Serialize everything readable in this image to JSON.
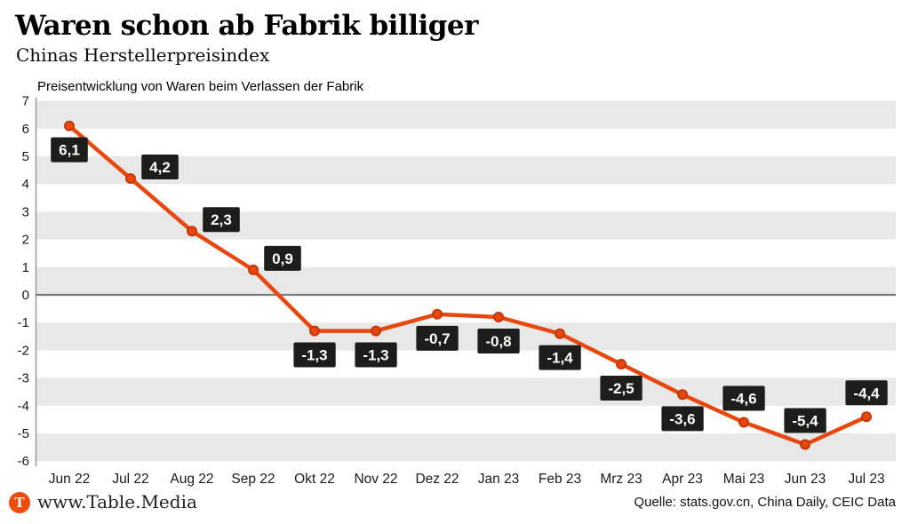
{
  "header": {
    "title": "Waren schon ab Fabrik billiger",
    "subtitle": "Chinas Herstellerpreisindex"
  },
  "footer": {
    "logo_letter": "T",
    "site": "www.Table.Media",
    "source": "Quelle: stats.gov.cn, China Daily, CEIC Data"
  },
  "colors": {
    "line": "#e8470e",
    "marker_fill": "#e8470e",
    "marker_stroke": "#c33708",
    "band": "#e8e8e8",
    "label_box": "#1d1d1b",
    "label_text": "#ffffff",
    "zero_line": "#7d7d7d",
    "axis_line": "#9c9c9c",
    "tick_text": "#1a1a1a",
    "brand": "#ee4b0f"
  },
  "chart_data": {
    "type": "line",
    "title": "Preisentwicklung von Waren beim Verlassen der Fabrik",
    "xlabel": "",
    "ylabel": "",
    "categories": [
      "Jun 22",
      "Jul 22",
      "Aug 22",
      "Sep 22",
      "Okt 22",
      "Nov 22",
      "Dez 22",
      "Jan 23",
      "Feb 23",
      "Mrz 23",
      "Apr 23",
      "Mai 23",
      "Jun 23",
      "Jul 23"
    ],
    "values": [
      6.1,
      4.2,
      2.3,
      0.9,
      -1.3,
      -1.3,
      -0.7,
      -0.8,
      -1.4,
      -2.5,
      -3.6,
      -4.6,
      -5.4,
      -4.4
    ],
    "value_labels": [
      "6,1",
      "4,2",
      "2,3",
      "0,9",
      "-1,3",
      "-1,3",
      "-0,7",
      "-0,8",
      "-1,4",
      "-2,5",
      "-3,6",
      "-4,6",
      "-5,4",
      "-4,4"
    ],
    "label_positions": [
      "below",
      "above-right",
      "above-right",
      "above-right",
      "below",
      "below",
      "below",
      "below",
      "below",
      "below",
      "below",
      "above",
      "above",
      "above"
    ],
    "ylim": [
      -6,
      7
    ],
    "y_ticks": [
      "7",
      "6",
      "5",
      "4",
      "3",
      "2",
      "1",
      "0",
      "-1",
      "-2",
      "-3",
      "-4",
      "-5",
      "-6"
    ],
    "grid": "horizontal striped bands, one unit tall, alternating gray/white starting gray at top",
    "legend": "none",
    "decimal_separator": ","
  }
}
